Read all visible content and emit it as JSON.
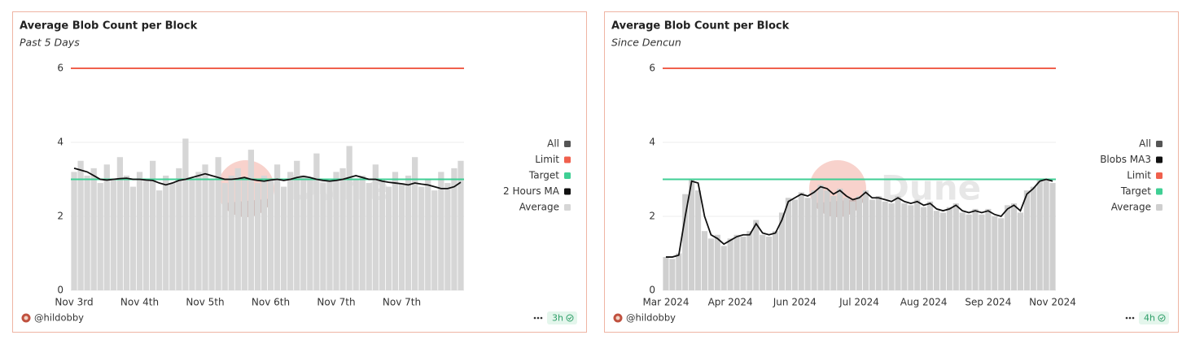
{
  "chart_data": [
    {
      "type": "bar",
      "title": "Average Blob Count per Block",
      "subtitle": "Past 5 Days",
      "watermark": "Dune",
      "author": "@hildobby",
      "refresh": "3h",
      "categories": [
        "Nov 3rd",
        null,
        null,
        null,
        null,
        null,
        null,
        null,
        null,
        null,
        "Nov 4th",
        null,
        null,
        null,
        null,
        null,
        null,
        null,
        null,
        null,
        "Nov 5th",
        null,
        null,
        null,
        null,
        null,
        null,
        null,
        null,
        null,
        "Nov 6th",
        null,
        null,
        null,
        null,
        null,
        null,
        null,
        null,
        null,
        "Nov 7th",
        null,
        null,
        null,
        null,
        null,
        null,
        null,
        null,
        null,
        "Nov 7th",
        null,
        null,
        null,
        null,
        null,
        null,
        null,
        null,
        null
      ],
      "ylim": [
        0,
        6
      ],
      "yticks": [
        0,
        2,
        4,
        6
      ],
      "grid": true,
      "series": [
        {
          "name": "All",
          "color": "#555555"
        },
        {
          "name": "Limit",
          "type": "rule",
          "color": "#f0604d",
          "value": 6
        },
        {
          "name": "Target",
          "type": "rule",
          "color": "#3fcf94",
          "value": 3
        },
        {
          "name": "2 Hours MA",
          "type": "line",
          "color": "#111111",
          "values": [
            3.3,
            3.25,
            3.2,
            3.1,
            3.0,
            2.98,
            3.0,
            3.02,
            3.03,
            3.0,
            3.0,
            2.98,
            2.97,
            2.9,
            2.85,
            2.9,
            2.97,
            3.0,
            3.05,
            3.1,
            3.15,
            3.1,
            3.05,
            3.0,
            3.0,
            3.02,
            3.05,
            3.0,
            2.97,
            2.95,
            2.98,
            3.0,
            2.97,
            3.0,
            3.05,
            3.08,
            3.05,
            3.0,
            2.97,
            2.95,
            2.97,
            3.0,
            3.05,
            3.1,
            3.05,
            3.0,
            3.0,
            2.95,
            2.92,
            2.9,
            2.88,
            2.85,
            2.9,
            2.87,
            2.85,
            2.8,
            2.75,
            2.75,
            2.8,
            2.92
          ]
        },
        {
          "name": "Average",
          "type": "bar",
          "color": "#d6d6d6",
          "values": [
            3.2,
            3.5,
            3.1,
            3.3,
            2.9,
            3.4,
            3.0,
            3.6,
            3.1,
            2.8,
            3.2,
            3.0,
            3.5,
            2.7,
            3.1,
            2.9,
            3.3,
            4.1,
            3.0,
            3.2,
            3.4,
            3.0,
            3.6,
            2.9,
            3.1,
            3.3,
            3.0,
            3.8,
            2.9,
            3.1,
            3.0,
            3.4,
            2.8,
            3.2,
            3.5,
            3.1,
            3.0,
            3.7,
            2.9,
            3.0,
            3.2,
            3.3,
            3.9,
            3.0,
            3.1,
            2.9,
            3.4,
            3.0,
            2.8,
            3.2,
            2.9,
            3.1,
            3.6,
            2.8,
            3.0,
            2.7,
            3.2,
            2.9,
            3.3,
            3.5
          ]
        }
      ]
    },
    {
      "type": "bar",
      "title": "Average Blob Count per Block",
      "subtitle": "Since Dencun",
      "watermark": "Dune",
      "author": "@hildobby",
      "refresh": "4h",
      "categories": [
        "Mar 2024",
        null,
        null,
        null,
        null,
        null,
        null,
        null,
        null,
        null,
        "Apr 2024",
        null,
        null,
        null,
        null,
        null,
        null,
        null,
        null,
        null,
        "Jun 2024",
        null,
        null,
        null,
        null,
        null,
        null,
        null,
        null,
        null,
        "Jul 2024",
        null,
        null,
        null,
        null,
        null,
        null,
        null,
        null,
        null,
        "Aug 2024",
        null,
        null,
        null,
        null,
        null,
        null,
        null,
        null,
        null,
        "Sep 2024",
        null,
        null,
        null,
        null,
        null,
        null,
        null,
        null,
        null,
        "Nov 2024"
      ],
      "ylim": [
        0,
        6
      ],
      "yticks": [
        0,
        2,
        4,
        6
      ],
      "grid": true,
      "series": [
        {
          "name": "All",
          "color": "#555555"
        },
        {
          "name": "Blobs MA3",
          "type": "line",
          "color": "#111111",
          "values": [
            0.9,
            0.9,
            0.95,
            2.0,
            2.95,
            2.9,
            2.0,
            1.5,
            1.4,
            1.25,
            1.35,
            1.45,
            1.5,
            1.5,
            1.8,
            1.55,
            1.5,
            1.55,
            1.9,
            2.4,
            2.5,
            2.6,
            2.55,
            2.65,
            2.8,
            2.75,
            2.6,
            2.7,
            2.55,
            2.45,
            2.5,
            2.65,
            2.5,
            2.5,
            2.45,
            2.4,
            2.5,
            2.4,
            2.35,
            2.4,
            2.3,
            2.35,
            2.2,
            2.15,
            2.2,
            2.3,
            2.15,
            2.1,
            2.15,
            2.1,
            2.15,
            2.05,
            2.0,
            2.2,
            2.3,
            2.15,
            2.6,
            2.75,
            2.95,
            3.0,
            2.95
          ]
        },
        {
          "name": "Limit",
          "type": "rule",
          "color": "#f0604d",
          "value": 6
        },
        {
          "name": "Target",
          "type": "rule",
          "color": "#3fcf94",
          "value": 3
        },
        {
          "name": "Average",
          "type": "bar",
          "color": "#cfcfcf",
          "values": [
            0.9,
            0.85,
            1.0,
            2.6,
            3.0,
            2.7,
            1.6,
            1.4,
            1.5,
            1.2,
            1.4,
            1.5,
            1.45,
            1.6,
            1.9,
            1.5,
            1.45,
            1.6,
            2.1,
            2.5,
            2.45,
            2.65,
            2.5,
            2.7,
            2.85,
            2.7,
            2.55,
            2.75,
            2.5,
            2.4,
            2.55,
            2.7,
            2.45,
            2.55,
            2.4,
            2.35,
            2.55,
            2.35,
            2.3,
            2.45,
            2.25,
            2.4,
            2.15,
            2.1,
            2.25,
            2.35,
            2.1,
            2.05,
            2.2,
            2.05,
            2.2,
            2.0,
            1.95,
            2.3,
            2.35,
            2.1,
            2.7,
            2.8,
            3.0,
            3.0,
            2.9
          ]
        }
      ]
    }
  ]
}
